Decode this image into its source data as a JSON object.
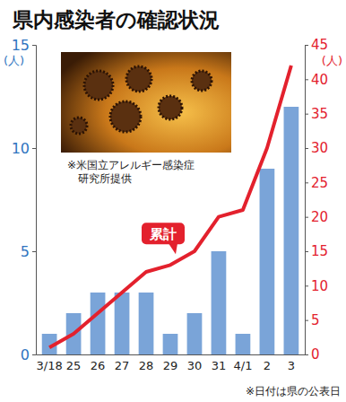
{
  "chart_data": {
    "type": "bar",
    "title": "県内感染者の確認状況",
    "categories": [
      "3/18",
      "25",
      "26",
      "27",
      "28",
      "29",
      "30",
      "31",
      "4/1",
      "2",
      "3"
    ],
    "series": [
      {
        "type": "bar",
        "color": "#7aa4d8",
        "values": [
          1,
          2,
          3,
          3,
          3,
          1,
          2,
          5,
          1,
          9,
          12
        ]
      },
      {
        "name": "累計",
        "type": "line",
        "axis": "y2",
        "color": "#e3212d",
        "values": [
          1,
          3,
          6,
          9,
          12,
          13,
          15,
          20,
          21,
          30,
          42
        ]
      }
    ],
    "ylabel": "(人)",
    "y2label": "(人)",
    "ylim": [
      0,
      15
    ],
    "yticks": [
      0,
      5,
      10,
      15
    ],
    "y2lim": [
      0,
      45
    ],
    "y2ticks": [
      0,
      5,
      10,
      15,
      20,
      25,
      30,
      35,
      40,
      45
    ],
    "annotations": [
      "※米国立アレルギー感染症研究所提供",
      "※日付は県の公表日"
    ],
    "grid": false
  }
}
